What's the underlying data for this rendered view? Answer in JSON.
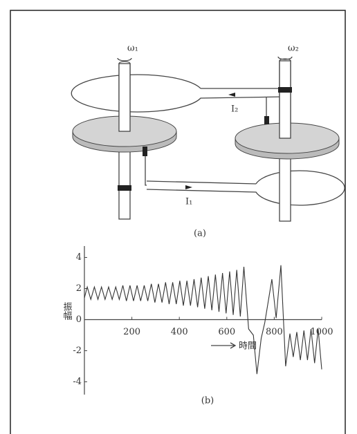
{
  "diagram": {
    "omega1": "ω₁",
    "omega2": "ω₂",
    "current2": "I₂",
    "current1": "I₁",
    "caption": "(a)"
  },
  "chart_data": {
    "type": "line",
    "caption": "(b)",
    "x_label": "時間",
    "y_label": "振幅",
    "x": [
      0,
      12,
      27,
      42,
      57,
      72,
      87,
      102,
      117,
      132,
      147,
      162,
      177,
      192,
      207,
      222,
      237,
      252,
      267,
      282,
      297,
      312,
      327,
      342,
      357,
      372,
      387,
      402,
      417,
      432,
      447,
      462,
      477,
      492,
      507,
      522,
      537,
      552,
      567,
      582,
      597,
      612,
      627,
      642,
      657,
      672,
      692,
      712,
      727,
      745,
      760,
      790,
      808,
      828,
      848,
      866,
      880,
      895,
      910,
      925,
      940,
      955,
      970,
      985,
      1000
    ],
    "series": [
      {
        "color": "#333333",
        "values": [
          1.4,
          2.1,
          1.3,
          2.1,
          1.3,
          2.1,
          1.3,
          2.1,
          1.3,
          2.1,
          1.3,
          2.2,
          1.2,
          2.2,
          1.2,
          2.2,
          1.2,
          2.2,
          1.2,
          2.3,
          1.1,
          2.3,
          1.1,
          2.4,
          1.0,
          2.4,
          1.0,
          2.5,
          0.9,
          2.5,
          0.9,
          2.6,
          0.8,
          2.7,
          0.7,
          2.8,
          0.6,
          2.9,
          0.5,
          3.0,
          0.4,
          3.1,
          0.3,
          3.2,
          0.2,
          3.4,
          -0.6,
          -1.0,
          -3.5,
          -1.2,
          -0.2,
          2.6,
          0.1,
          3.5,
          -3.0,
          -0.9,
          -2.4,
          -0.8,
          -2.6,
          -0.7,
          -2.6,
          -0.6,
          -2.8,
          -0.6,
          -3.2
        ]
      }
    ],
    "xlim": [
      0,
      1000
    ],
    "xticks": [
      200,
      400,
      600,
      800,
      1000
    ],
    "ylim": [
      -5,
      5
    ],
    "yticks": [
      4,
      2,
      0,
      -2,
      -4
    ]
  }
}
